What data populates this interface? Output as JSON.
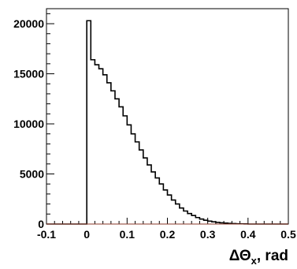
{
  "chart_data": {
    "type": "histogram",
    "title": "",
    "xlabel": {
      "prefix": "ΔΘ",
      "subscript": "x",
      "suffix": ", rad"
    },
    "ylabel": "",
    "xlim": [
      -0.1,
      0.5
    ],
    "ylim": [
      0,
      21500
    ],
    "x_ticks": [
      "-0.1",
      "0",
      "0.1",
      "0.2",
      "0.3",
      "0.4",
      "0.5"
    ],
    "y_ticks": [
      "0",
      "5000",
      "10000",
      "15000",
      "20000"
    ],
    "bin_width": 0.01,
    "bin_start": 0.0,
    "counts": [
      20300,
      16400,
      15900,
      15500,
      14900,
      14100,
      13300,
      12500,
      11700,
      10800,
      9900,
      9000,
      8200,
      7400,
      6600,
      5900,
      5200,
      4600,
      4000,
      3400,
      2900,
      2400,
      2000,
      1600,
      1300,
      1050,
      850,
      650,
      500,
      380,
      290,
      220,
      160,
      120,
      90,
      65,
      45,
      30,
      20,
      15
    ],
    "line_color": "#000000",
    "grid": false
  }
}
